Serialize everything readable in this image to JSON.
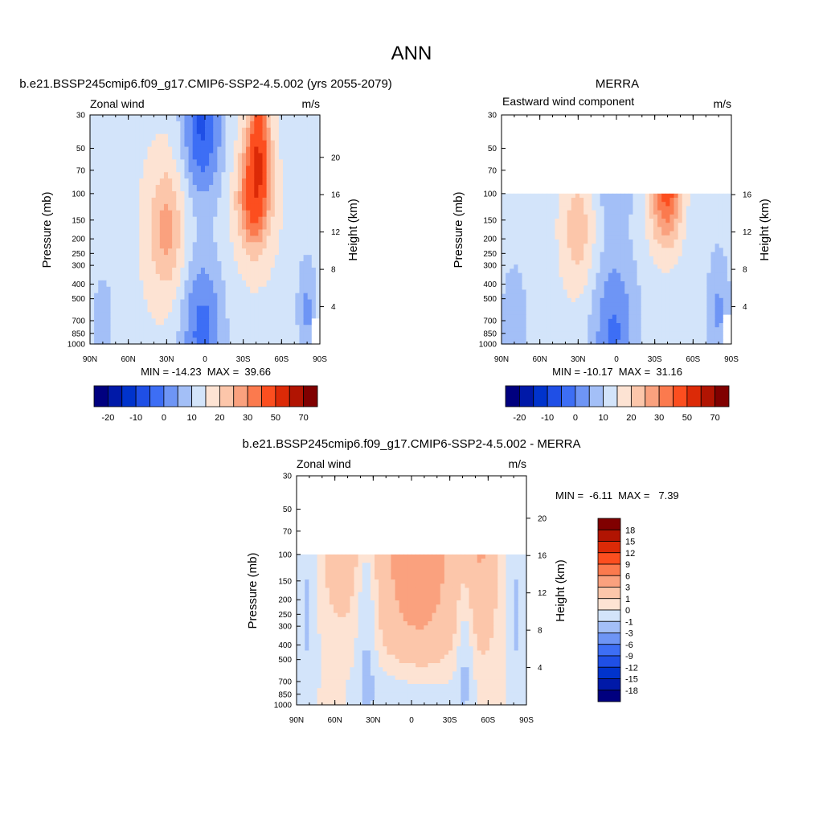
{
  "page_title": "ANN",
  "palettes": {
    "full": [
      "#00007f",
      "#0019a8",
      "#0033cc",
      "#1f4fe6",
      "#3d6ef5",
      "#6e95f5",
      "#a3bff7",
      "#d3e4fa",
      "#fde3d3",
      "#fcc6aa",
      "#faa17e",
      "#fb7a4e",
      "#fc4e1f",
      "#dc2a07",
      "#b11402",
      "#800000"
    ],
    "diff": [
      "#00007f",
      "#0019a8",
      "#0033cc",
      "#1f4fe6",
      "#3d6ef5",
      "#6e95f5",
      "#a3bff7",
      "#d3e4fa",
      "#fde3d3",
      "#fcc6aa",
      "#faa17e",
      "#fb7a4e",
      "#fc4e1f",
      "#dc2a07",
      "#b11402",
      "#800000"
    ]
  },
  "chart_data": [
    {
      "type": "heatmap",
      "panel_title": "b.e21.BSSP245cmip6.f09_g17.CMIP6-SSP2-4.5.002 (yrs 2055-2079)",
      "left_label": "Zonal wind",
      "units": "m/s",
      "ylabel": "Pressure (mb)",
      "ylabel_right": "Height (km)",
      "x_ticks": [
        "90N",
        "60N",
        "30N",
        "0",
        "30S",
        "60S",
        "90S"
      ],
      "y_ticks": [
        "30",
        "50",
        "70",
        "100",
        "150",
        "200",
        "250",
        "300",
        "400",
        "500",
        "700",
        "850",
        "1000"
      ],
      "height_ticks": [
        "4",
        "8",
        "12",
        "16",
        "20"
      ],
      "stats": "MIN = -14.23  MAX =  39.66",
      "colorbar_labels": [
        "-20",
        "-10",
        "0",
        "10",
        "20",
        "30",
        "50",
        "70"
      ],
      "data_ptop": 30
    },
    {
      "type": "heatmap",
      "panel_title": "MERRA",
      "left_label": "Eastward wind component",
      "units": "m/s",
      "ylabel": "Pressure (mb)",
      "ylabel_right": "Height (km)",
      "x_ticks": [
        "90N",
        "60N",
        "30N",
        "0",
        "30S",
        "60S",
        "90S"
      ],
      "y_ticks": [
        "30",
        "50",
        "70",
        "100",
        "150",
        "200",
        "250",
        "300",
        "400",
        "500",
        "700",
        "850",
        "1000"
      ],
      "height_ticks": [
        "4",
        "8",
        "12",
        "16"
      ],
      "stats": "MIN = -10.17  MAX =  31.16",
      "colorbar_labels": [
        "-20",
        "-10",
        "0",
        "10",
        "20",
        "30",
        "50",
        "70"
      ],
      "data_ptop": 100
    },
    {
      "type": "heatmap",
      "panel_title": "b.e21.BSSP245cmip6.f09_g17.CMIP6-SSP2-4.5.002 - MERRA",
      "left_label": "Zonal wind",
      "units": "m/s",
      "ylabel": "Pressure (mb)",
      "ylabel_right": "Height (km)",
      "x_ticks": [
        "90N",
        "60N",
        "30N",
        "0",
        "30S",
        "60S",
        "90S"
      ],
      "y_ticks": [
        "30",
        "50",
        "70",
        "100",
        "150",
        "200",
        "250",
        "300",
        "400",
        "500",
        "700",
        "850",
        "1000"
      ],
      "height_ticks": [
        "4",
        "8",
        "12",
        "16",
        "20"
      ],
      "stats": "MIN =  -6.11  MAX =   7.39",
      "colorbar_labels": [
        "18",
        "15",
        "12",
        "9",
        "6",
        "3",
        "1",
        "0",
        "-1",
        "-3",
        "-6",
        "-9",
        "-12",
        "-15",
        "-18"
      ],
      "data_ptop": 100
    }
  ]
}
